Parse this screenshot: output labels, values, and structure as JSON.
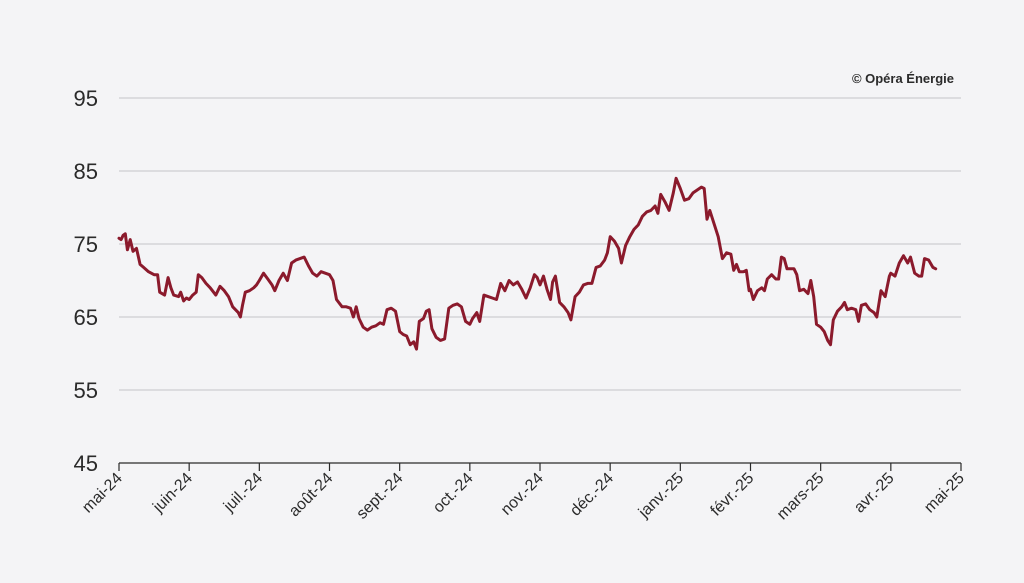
{
  "copyright": "© Opéra Énergie",
  "colors": {
    "line": "#8b1a2c",
    "grid": "#c4c4c8",
    "background": "#f4f4f6"
  },
  "chart_data": {
    "type": "line",
    "title": "",
    "xlabel": "",
    "ylabel": "",
    "ylim": [
      45,
      95
    ],
    "yticks": [
      45,
      55,
      65,
      75,
      85,
      95
    ],
    "grid": true,
    "x_tick_labels": [
      "mai-24",
      "juin-24",
      "juil.-24",
      "août-24",
      "sept.-24",
      "oct.-24",
      "nov.-24",
      "déc.-24",
      "janv.-25",
      "févr.-25",
      "mars-25",
      "avr.-25",
      "mai-25"
    ],
    "series": [
      {
        "values": [
          [
            0.0,
            75.8
          ],
          [
            0.03,
            75.6
          ],
          [
            0.06,
            76.2
          ],
          [
            0.09,
            76.4
          ],
          [
            0.12,
            74.2
          ],
          [
            0.16,
            75.6
          ],
          [
            0.2,
            74.0
          ],
          [
            0.25,
            74.4
          ],
          [
            0.3,
            72.2
          ],
          [
            0.35,
            71.8
          ],
          [
            0.42,
            71.2
          ],
          [
            0.5,
            70.8
          ],
          [
            0.55,
            70.8
          ],
          [
            0.58,
            68.4
          ],
          [
            0.65,
            68.0
          ],
          [
            0.7,
            70.4
          ],
          [
            0.74,
            69.0
          ],
          [
            0.78,
            68.0
          ],
          [
            0.85,
            67.8
          ],
          [
            0.88,
            68.4
          ],
          [
            0.92,
            67.2
          ],
          [
            0.96,
            67.6
          ],
          [
            1.0,
            67.4
          ],
          [
            1.05,
            68.0
          ],
          [
            1.1,
            68.4
          ],
          [
            1.13,
            70.8
          ],
          [
            1.18,
            70.4
          ],
          [
            1.24,
            69.6
          ],
          [
            1.3,
            69.0
          ],
          [
            1.38,
            68.0
          ],
          [
            1.44,
            69.2
          ],
          [
            1.5,
            68.6
          ],
          [
            1.56,
            67.8
          ],
          [
            1.62,
            66.4
          ],
          [
            1.66,
            66.0
          ],
          [
            1.7,
            65.6
          ],
          [
            1.73,
            65.0
          ],
          [
            1.76,
            66.6
          ],
          [
            1.8,
            68.4
          ],
          [
            1.86,
            68.6
          ],
          [
            1.92,
            69.0
          ],
          [
            1.96,
            69.4
          ],
          [
            2.0,
            70.0
          ],
          [
            2.06,
            71.0
          ],
          [
            2.12,
            70.2
          ],
          [
            2.18,
            69.4
          ],
          [
            2.22,
            68.6
          ],
          [
            2.28,
            70.0
          ],
          [
            2.34,
            71.0
          ],
          [
            2.4,
            70.0
          ],
          [
            2.46,
            72.4
          ],
          [
            2.52,
            72.8
          ],
          [
            2.58,
            73.0
          ],
          [
            2.64,
            73.2
          ],
          [
            2.7,
            72.0
          ],
          [
            2.76,
            71.0
          ],
          [
            2.82,
            70.6
          ],
          [
            2.88,
            71.2
          ],
          [
            2.94,
            71.0
          ],
          [
            3.0,
            70.8
          ],
          [
            3.05,
            70.0
          ],
          [
            3.1,
            67.4
          ],
          [
            3.18,
            66.4
          ],
          [
            3.24,
            66.4
          ],
          [
            3.3,
            66.2
          ],
          [
            3.34,
            65.0
          ],
          [
            3.38,
            66.4
          ],
          [
            3.42,
            64.8
          ],
          [
            3.48,
            63.6
          ],
          [
            3.54,
            63.2
          ],
          [
            3.6,
            63.6
          ],
          [
            3.66,
            63.8
          ],
          [
            3.72,
            64.2
          ],
          [
            3.77,
            64.0
          ],
          [
            3.82,
            66.0
          ],
          [
            3.88,
            66.2
          ],
          [
            3.94,
            65.8
          ],
          [
            4.0,
            63.0
          ],
          [
            4.05,
            62.6
          ],
          [
            4.1,
            62.4
          ],
          [
            4.15,
            61.2
          ],
          [
            4.2,
            61.6
          ],
          [
            4.24,
            60.6
          ],
          [
            4.28,
            64.4
          ],
          [
            4.34,
            64.8
          ],
          [
            4.38,
            65.8
          ],
          [
            4.42,
            66.0
          ],
          [
            4.46,
            63.4
          ],
          [
            4.52,
            62.2
          ],
          [
            4.58,
            61.8
          ],
          [
            4.64,
            62.0
          ],
          [
            4.7,
            66.2
          ],
          [
            4.76,
            66.6
          ],
          [
            4.82,
            66.8
          ],
          [
            4.88,
            66.4
          ],
          [
            4.94,
            64.4
          ],
          [
            5.0,
            64.0
          ],
          [
            5.04,
            64.8
          ],
          [
            5.1,
            65.6
          ],
          [
            5.14,
            64.4
          ],
          [
            5.2,
            68.0
          ],
          [
            5.26,
            67.8
          ],
          [
            5.32,
            67.6
          ],
          [
            5.38,
            67.4
          ],
          [
            5.44,
            69.6
          ],
          [
            5.5,
            68.6
          ],
          [
            5.56,
            70.0
          ],
          [
            5.62,
            69.4
          ],
          [
            5.68,
            69.8
          ],
          [
            5.74,
            68.8
          ],
          [
            5.8,
            67.6
          ],
          [
            5.86,
            69.0
          ],
          [
            5.92,
            70.8
          ],
          [
            5.96,
            70.4
          ],
          [
            6.0,
            69.4
          ],
          [
            6.05,
            70.6
          ],
          [
            6.1,
            68.8
          ],
          [
            6.15,
            67.4
          ],
          [
            6.18,
            69.8
          ],
          [
            6.22,
            70.6
          ],
          [
            6.28,
            67.0
          ],
          [
            6.34,
            66.4
          ],
          [
            6.4,
            65.6
          ],
          [
            6.44,
            64.6
          ],
          [
            6.5,
            67.8
          ],
          [
            6.56,
            68.4
          ],
          [
            6.62,
            69.4
          ],
          [
            6.68,
            69.6
          ],
          [
            6.74,
            69.6
          ],
          [
            6.8,
            71.8
          ],
          [
            6.86,
            72.0
          ],
          [
            6.92,
            72.8
          ],
          [
            6.96,
            73.8
          ],
          [
            7.0,
            76.0
          ],
          [
            7.06,
            75.4
          ],
          [
            7.12,
            74.4
          ],
          [
            7.16,
            72.4
          ],
          [
            7.22,
            74.8
          ],
          [
            7.28,
            76.0
          ],
          [
            7.34,
            77.0
          ],
          [
            7.4,
            77.6
          ],
          [
            7.46,
            78.8
          ],
          [
            7.52,
            79.4
          ],
          [
            7.58,
            79.6
          ],
          [
            7.64,
            80.2
          ],
          [
            7.68,
            79.2
          ],
          [
            7.72,
            81.8
          ],
          [
            7.78,
            80.8
          ],
          [
            7.84,
            79.6
          ],
          [
            7.9,
            82.0
          ],
          [
            7.94,
            84.0
          ],
          [
            8.0,
            82.6
          ],
          [
            8.06,
            81.0
          ],
          [
            8.12,
            81.2
          ],
          [
            8.18,
            82.0
          ],
          [
            8.24,
            82.4
          ],
          [
            8.3,
            82.8
          ],
          [
            8.34,
            82.6
          ],
          [
            8.38,
            78.4
          ],
          [
            8.42,
            79.6
          ],
          [
            8.48,
            77.8
          ],
          [
            8.54,
            76.0
          ],
          [
            8.6,
            73.0
          ],
          [
            8.66,
            73.8
          ],
          [
            8.72,
            73.6
          ],
          [
            8.76,
            71.4
          ],
          [
            8.8,
            72.2
          ],
          [
            8.84,
            71.2
          ],
          [
            8.9,
            71.2
          ],
          [
            8.94,
            71.4
          ],
          [
            8.98,
            68.6
          ],
          [
            9.0,
            68.8
          ],
          [
            9.04,
            67.4
          ],
          [
            9.1,
            68.6
          ],
          [
            9.16,
            69.0
          ],
          [
            9.2,
            68.6
          ],
          [
            9.24,
            70.2
          ],
          [
            9.3,
            70.8
          ],
          [
            9.36,
            70.2
          ],
          [
            9.4,
            70.2
          ],
          [
            9.44,
            73.2
          ],
          [
            9.48,
            73.0
          ],
          [
            9.52,
            71.6
          ],
          [
            9.58,
            71.6
          ],
          [
            9.62,
            71.6
          ],
          [
            9.66,
            70.8
          ],
          [
            9.7,
            68.6
          ],
          [
            9.76,
            68.8
          ],
          [
            9.82,
            68.2
          ],
          [
            9.86,
            70.0
          ],
          [
            9.9,
            67.8
          ],
          [
            9.94,
            64.0
          ],
          [
            10.0,
            63.6
          ],
          [
            10.05,
            63.0
          ],
          [
            10.1,
            61.8
          ],
          [
            10.14,
            61.2
          ],
          [
            10.18,
            64.6
          ],
          [
            10.24,
            65.8
          ],
          [
            10.3,
            66.4
          ],
          [
            10.34,
            67.0
          ],
          [
            10.38,
            66.0
          ],
          [
            10.44,
            66.2
          ],
          [
            10.5,
            66.0
          ],
          [
            10.54,
            64.4
          ],
          [
            10.58,
            66.6
          ],
          [
            10.64,
            66.8
          ],
          [
            10.7,
            66.0
          ],
          [
            10.76,
            65.6
          ],
          [
            10.8,
            65.0
          ],
          [
            10.86,
            68.6
          ],
          [
            10.92,
            67.8
          ],
          [
            10.98,
            70.6
          ],
          [
            11.0,
            71.0
          ],
          [
            11.06,
            70.6
          ],
          [
            11.12,
            72.4
          ],
          [
            11.18,
            73.4
          ],
          [
            11.24,
            72.4
          ],
          [
            11.28,
            73.2
          ],
          [
            11.34,
            71.0
          ],
          [
            11.4,
            70.6
          ],
          [
            11.44,
            70.6
          ],
          [
            11.48,
            73.0
          ],
          [
            11.54,
            72.8
          ],
          [
            11.6,
            71.8
          ],
          [
            11.64,
            71.6
          ]
        ]
      }
    ]
  }
}
